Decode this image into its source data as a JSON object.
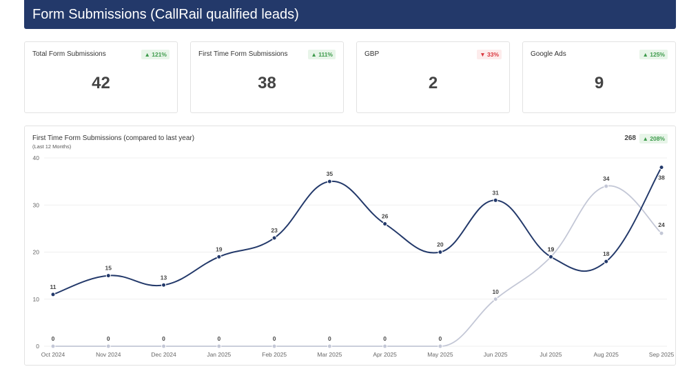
{
  "header": {
    "title": "Form Submissions (CallRail qualified leads)"
  },
  "cards": [
    {
      "label": "Total Form Submissions",
      "value": "42",
      "change": "121%",
      "direction": "up"
    },
    {
      "label": "First Time Form Submissions",
      "value": "38",
      "change": "111%",
      "direction": "up"
    },
    {
      "label": "GBP",
      "value": "2",
      "change": "33%",
      "direction": "down"
    },
    {
      "label": "Google Ads",
      "value": "9",
      "change": "125%",
      "direction": "up"
    }
  ],
  "chart": {
    "title": "First Time Form Submissions (compared to last year)",
    "subtitle": "(Last 12 Months)",
    "total": "268",
    "change": "208%",
    "direction": "up"
  },
  "colors": {
    "header": "#23396a",
    "current_series": "#23396a",
    "previous_series": "#c3c7d6",
    "up": "#3c9a4a",
    "down": "#d9363e"
  },
  "chart_data": {
    "type": "line",
    "categories": [
      "Oct 2024",
      "Nov 2024",
      "Dec 2024",
      "Jan 2025",
      "Feb 2025",
      "Mar 2025",
      "Apr 2025",
      "May 2025",
      "Jun 2025",
      "Jul 2025",
      "Aug 2025",
      "Sep 2025"
    ],
    "series": [
      {
        "values": [
          11,
          15,
          13,
          19,
          23,
          35,
          26,
          20,
          31,
          19,
          18,
          38
        ]
      },
      {
        "values": [
          0,
          0,
          0,
          0,
          0,
          0,
          0,
          0,
          10,
          19,
          34,
          24
        ]
      }
    ],
    "ylim": [
      0,
      40
    ],
    "yticks": [
      0,
      10,
      20,
      30,
      40
    ],
    "grid": true,
    "legend": "none"
  }
}
